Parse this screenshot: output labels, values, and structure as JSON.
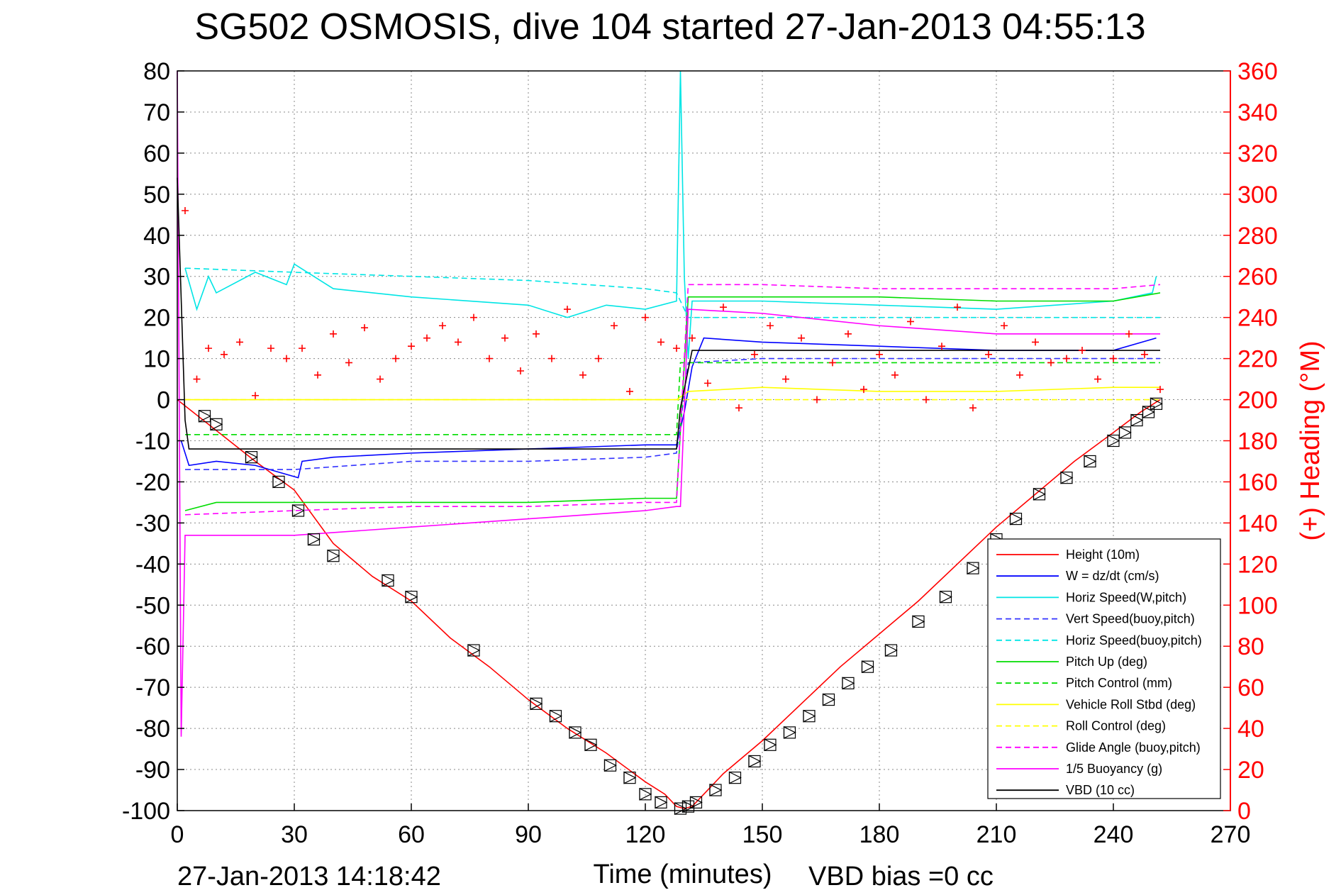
{
  "chart_data": {
    "type": "line",
    "title": "SG502 OSMOSIS, dive 104 started 27-Jan-2013 04:55:13",
    "xlabel": "Time (minutes)",
    "ylabel_right": "(+) Heading (°M)",
    "footer_left": "27-Jan-2013 14:18:42",
    "footer_right": "VBD bias =0 cc",
    "xlim": [
      0,
      270
    ],
    "ylim": [
      -100,
      80
    ],
    "y2lim": [
      0,
      360
    ],
    "grid": true,
    "legend_position": "bottom-right",
    "x_ticks": [
      "0",
      "30",
      "60",
      "90",
      "120",
      "150",
      "180",
      "210",
      "240",
      "270"
    ],
    "y_ticks": [
      "80",
      "70",
      "60",
      "50",
      "40",
      "30",
      "20",
      "10",
      "0",
      "-10",
      "-20",
      "-30",
      "-40",
      "-50",
      "-60",
      "-70",
      "-80",
      "-90",
      "-100"
    ],
    "y2_ticks": [
      "360",
      "340",
      "320",
      "300",
      "280",
      "260",
      "240",
      "220",
      "200",
      "180",
      "160",
      "140",
      "120",
      "100",
      "80",
      "60",
      "40",
      "20",
      "0"
    ],
    "series": [
      {
        "name": "Height (10m)",
        "color": "#ff0000",
        "style": "solid",
        "axis": "left",
        "x": [
          0,
          10,
          20,
          30,
          40,
          50,
          60,
          70,
          80,
          90,
          100,
          110,
          120,
          125,
          128,
          130,
          132,
          135,
          140,
          150,
          160,
          170,
          180,
          190,
          200,
          210,
          220,
          230,
          240,
          247,
          252
        ],
        "y": [
          0,
          -7.5,
          -15,
          -22,
          -35,
          -43,
          -49,
          -58,
          -65,
          -73,
          -80,
          -86,
          -93,
          -96,
          -99,
          -99.5,
          -99,
          -96,
          -91,
          -83,
          -74,
          -65,
          -57,
          -49,
          -40,
          -31,
          -23,
          -15,
          -8,
          -3,
          0
        ]
      },
      {
        "name": "W = dz/dt (cm/s)",
        "color": "#0000ff",
        "style": "solid",
        "axis": "left",
        "x": [
          1,
          3,
          10,
          20,
          31,
          32,
          40,
          60,
          90,
          120,
          128,
          130,
          132,
          135,
          150,
          180,
          210,
          240,
          251
        ],
        "y": [
          -10,
          -16,
          -15,
          -16,
          -19,
          -15,
          -14,
          -13,
          -12,
          -11,
          -11,
          -3,
          8,
          15,
          14,
          13,
          12,
          12,
          15
        ]
      },
      {
        "name": "Horiz Speed(W,pitch)",
        "color": "#00e5e5",
        "style": "solid",
        "axis": "left",
        "x": [
          2,
          5,
          8,
          10,
          20,
          28,
          30,
          40,
          60,
          90,
          100,
          110,
          120,
          128,
          129,
          130,
          131,
          132,
          150,
          180,
          210,
          240,
          250,
          251
        ],
        "y": [
          32,
          22,
          30,
          26,
          31,
          28,
          33,
          27,
          25,
          23,
          20,
          23,
          22,
          24,
          80,
          30,
          10,
          24,
          24,
          23,
          22,
          24,
          26,
          30
        ]
      },
      {
        "name": "Vert Speed(buoy,pitch)",
        "color": "#3333ff",
        "style": "dashed",
        "axis": "left",
        "x": [
          2,
          30,
          60,
          90,
          120,
          128,
          131,
          150,
          180,
          210,
          240,
          252
        ],
        "y": [
          -17,
          -17,
          -15,
          -15,
          -14,
          -13,
          9,
          10,
          10,
          10,
          10,
          10
        ]
      },
      {
        "name": "Horiz Speed(buoy,pitch)",
        "color": "#00e5e5",
        "style": "dashed",
        "axis": "left",
        "x": [
          2,
          30,
          60,
          90,
          120,
          128,
          131,
          150,
          180,
          210,
          240,
          252
        ],
        "y": [
          32,
          31,
          30,
          29,
          27,
          26,
          20,
          20,
          20,
          20,
          20,
          20
        ]
      },
      {
        "name": "Pitch Up (deg)",
        "color": "#00dd00",
        "style": "solid",
        "axis": "left",
        "x": [
          2,
          10,
          30,
          60,
          90,
          120,
          128,
          131,
          150,
          180,
          210,
          240,
          252
        ],
        "y": [
          -27,
          -25,
          -25,
          -25,
          -25,
          -24,
          -24,
          25,
          25,
          25,
          24,
          24,
          26
        ]
      },
      {
        "name": "Pitch Control (mm)",
        "color": "#00dd00",
        "style": "dashed",
        "axis": "left",
        "x": [
          2,
          128,
          129,
          252
        ],
        "y": [
          -8.5,
          -8.5,
          9,
          9
        ]
      },
      {
        "name": "Vehicle Roll Stbd (deg)",
        "color": "#ffff00",
        "style": "solid",
        "axis": "left",
        "x": [
          2,
          30,
          60,
          90,
          120,
          128,
          131,
          150,
          180,
          210,
          240,
          252
        ],
        "y": [
          0,
          0,
          0,
          0,
          0,
          0,
          2,
          3,
          2,
          2,
          3,
          3
        ]
      },
      {
        "name": "Roll Control (deg)",
        "color": "#ffff00",
        "style": "dashed",
        "axis": "left",
        "x": [
          2,
          30,
          60,
          90,
          120,
          128,
          131,
          150,
          180,
          210,
          240,
          252
        ],
        "y": [
          0,
          0,
          0,
          0,
          0,
          0,
          0,
          0,
          0,
          0,
          0,
          0
        ]
      },
      {
        "name": "Glide Angle (buoy,pitch)",
        "color": "#ff00ff",
        "style": "dashed",
        "axis": "left",
        "x": [
          2,
          30,
          60,
          90,
          120,
          128,
          131,
          150,
          180,
          210,
          240,
          252
        ],
        "y": [
          -28,
          -27,
          -26,
          -26,
          -25,
          -25,
          28,
          28,
          27,
          27,
          27,
          28
        ]
      },
      {
        "name": "1/5 Buoyancy (g)",
        "color": "#ff00ff",
        "style": "solid",
        "axis": "left",
        "x": [
          0,
          1,
          2,
          30,
          60,
          90,
          120,
          128,
          129,
          131,
          150,
          180,
          210,
          240,
          252
        ],
        "y": [
          80,
          -82,
          -33,
          -33,
          -31,
          -29,
          -27,
          -26,
          -26,
          22,
          21,
          18,
          16,
          16,
          16
        ]
      },
      {
        "name": "VBD (10 cc)",
        "color": "#000000",
        "style": "solid",
        "axis": "left",
        "x": [
          0,
          2,
          3,
          128,
          129,
          132,
          252
        ],
        "y": [
          54,
          -5,
          -12,
          -12,
          -2,
          12,
          12
        ]
      },
      {
        "name": "",
        "color": "#ff0000",
        "style": "markers",
        "axis": "right",
        "x": [
          2,
          5,
          8,
          12,
          16,
          20,
          24,
          28,
          32,
          36,
          40,
          44,
          48,
          52,
          56,
          60,
          64,
          68,
          72,
          76,
          80,
          84,
          88,
          92,
          96,
          100,
          104,
          108,
          112,
          116,
          120,
          124,
          128,
          132,
          136,
          140,
          144,
          148,
          152,
          156,
          160,
          164,
          168,
          172,
          176,
          180,
          184,
          188,
          192,
          196,
          200,
          204,
          208,
          212,
          216,
          220,
          224,
          228,
          232,
          236,
          240,
          244,
          248,
          252
        ],
        "y": [
          292,
          210,
          225,
          222,
          228,
          202,
          225,
          220,
          225,
          212,
          232,
          218,
          235,
          210,
          220,
          226,
          230,
          236,
          228,
          240,
          220,
          230,
          214,
          232,
          220,
          244,
          212,
          220,
          236,
          204,
          240,
          228,
          225,
          230,
          208,
          245,
          196,
          222,
          236,
          210,
          230,
          200,
          218,
          232,
          205,
          222,
          212,
          238,
          200,
          226,
          245,
          196,
          222,
          236,
          212,
          228,
          218,
          220,
          224,
          210,
          220,
          232,
          222,
          205
        ]
      }
    ],
    "markers_height": {
      "symbol": "triangle-box",
      "x": [
        7,
        10,
        19,
        26,
        31,
        35,
        40,
        54,
        60,
        76,
        92,
        97,
        102,
        106,
        111,
        116,
        120,
        124,
        129,
        131,
        133,
        138,
        143,
        148,
        152,
        157,
        162,
        167,
        172,
        177,
        183,
        190,
        197,
        204,
        210,
        215,
        221,
        228,
        234,
        240,
        243,
        246,
        249,
        251
      ],
      "y": [
        -4,
        -6,
        -14,
        -20,
        -27,
        -34,
        -38,
        -44,
        -48,
        -61,
        -74,
        -77,
        -81,
        -84,
        -89,
        -92,
        -96,
        -98,
        -99.5,
        -99,
        -98,
        -95,
        -92,
        -88,
        -84,
        -81,
        -77,
        -73,
        -69,
        -65,
        -61,
        -54,
        -48,
        -41,
        -34,
        -29,
        -23,
        -19,
        -15,
        -10,
        -8,
        -5,
        -3,
        -1
      ]
    }
  }
}
